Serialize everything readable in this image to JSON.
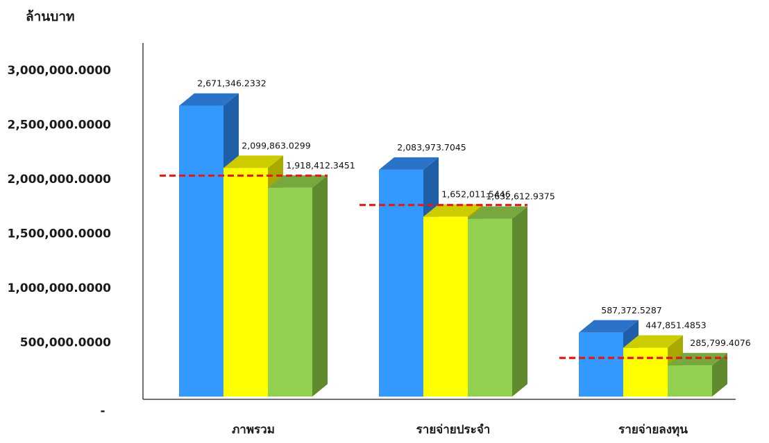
{
  "chart_data": {
    "type": "bar",
    "unit_label": "ล้านบาท",
    "categories": [
      "ภาพรวม",
      "รายจ่ายประจำ",
      "รายจ่ายลงทุน"
    ],
    "y_tick_labels": [
      "-",
      "500,000.0000",
      "1,000,000.0000",
      "1,500,000.0000",
      "2,000,000.0000",
      "2,500,000.0000",
      "3,000,000.0000"
    ],
    "y_ticks": [
      0,
      500000,
      1000000,
      1500000,
      2000000,
      2500000,
      3000000
    ],
    "ylim": [
      0,
      3000000
    ],
    "grid": false,
    "legend": "none",
    "series": [
      {
        "values": [
          2671346.2332,
          2083973.7045,
          587372.5287
        ],
        "labels": [
          "2,671,346.2332",
          "2,083,973.7045",
          "587,372.5287"
        ],
        "color": "#3399ff",
        "side_color": "#1f5fa8",
        "top_color": "#2b73c8"
      },
      {
        "values": [
          2099863.0299,
          1652011.5446,
          447851.4853
        ],
        "labels": [
          "2,099,863.0299",
          "1,652,011.5446",
          "447,851.4853"
        ],
        "color": "#ffff00",
        "side_color": "#a8a800",
        "top_color": "#cccc00"
      },
      {
        "values": [
          1918412.3451,
          1632612.9375,
          285799.4076
        ],
        "labels": [
          "1,918,412.3451",
          "1,632,612.9375",
          "285,799.4076"
        ],
        "color": "#92d050",
        "side_color": "#5f8a30",
        "top_color": "#76a83e"
      }
    ],
    "reference_lines": {
      "values": [
        2030000,
        1760000,
        355000
      ],
      "color": "#e01b1b",
      "style": "dashed"
    }
  }
}
